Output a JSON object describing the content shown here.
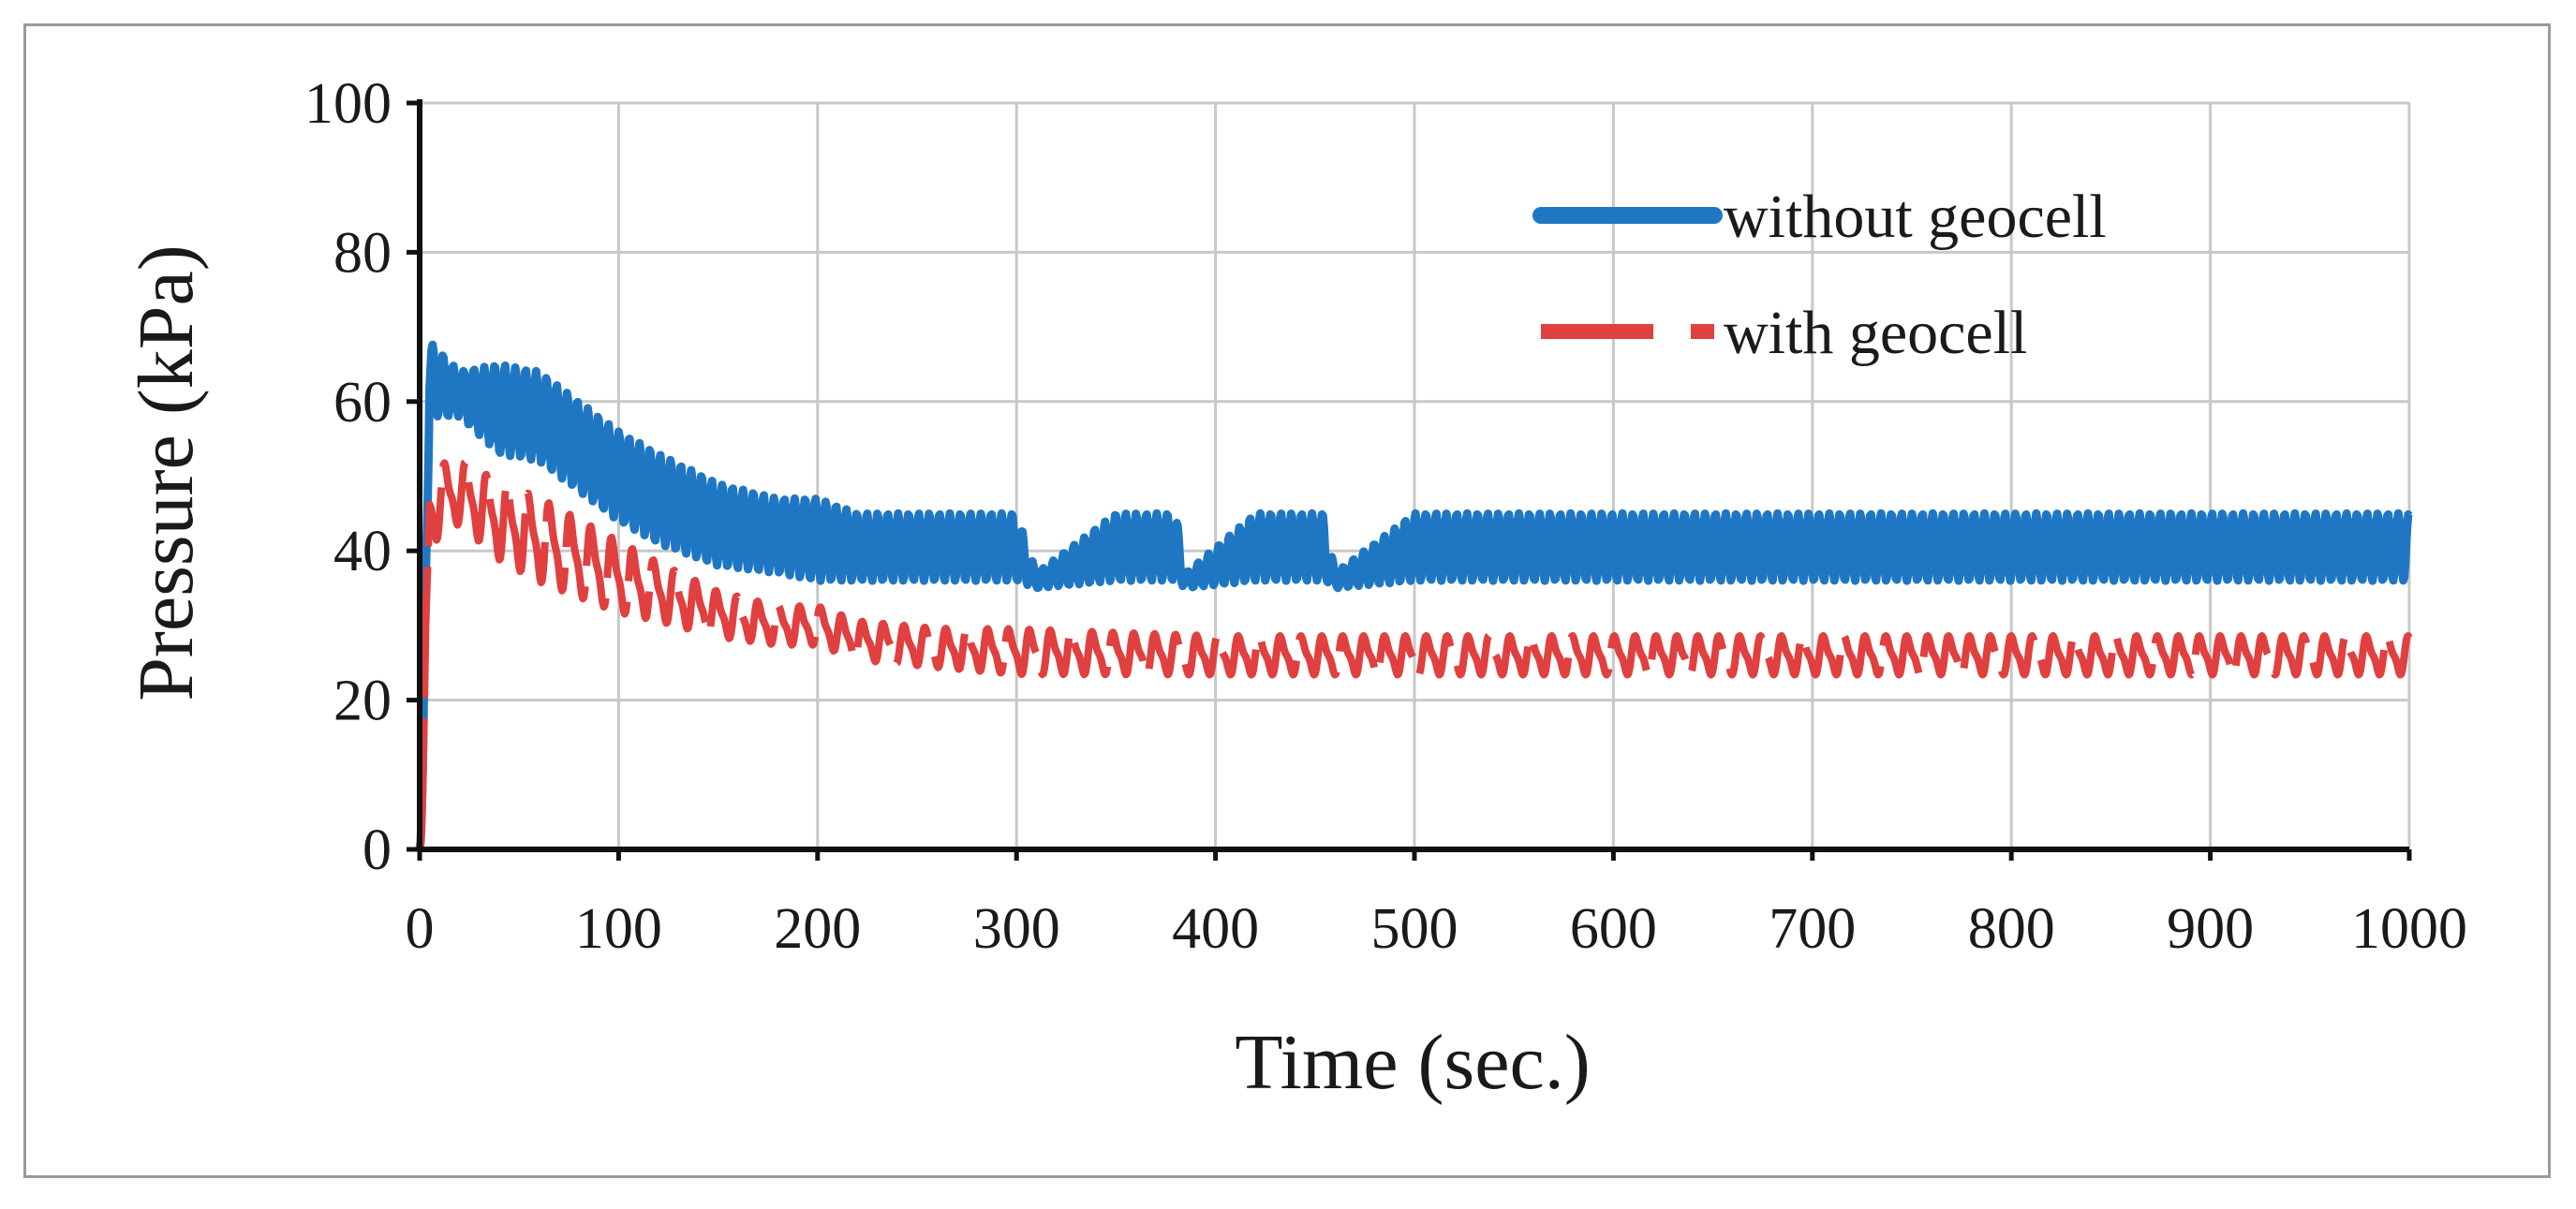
{
  "chart_data": {
    "type": "line",
    "title": "",
    "xlabel": "Time (sec.)",
    "ylabel": "Pressure (kPa)",
    "xlim": [
      0,
      1000
    ],
    "ylim": [
      0,
      100
    ],
    "xticks": [
      0,
      100,
      200,
      300,
      400,
      500,
      600,
      700,
      800,
      900,
      1000
    ],
    "yticks": [
      0,
      20,
      40,
      60,
      80,
      100
    ],
    "grid": true,
    "legend_position": "top-right",
    "series": [
      {
        "name": "without geocell",
        "color": "#1f77c4",
        "line_style": "solid",
        "sampled_envelope": {
          "x": [
            0,
            5,
            20,
            40,
            60,
            80,
            100,
            120,
            150,
            180,
            200,
            220,
            260,
            300,
            310,
            350,
            380,
            385,
            420,
            455,
            460,
            500,
            600,
            700,
            800,
            900,
            1000
          ],
          "upper": [
            0,
            68,
            64,
            65,
            64,
            60,
            56,
            53,
            49,
            47,
            47,
            45,
            45,
            45,
            37,
            45,
            45,
            37,
            45,
            45,
            37,
            45,
            45,
            45,
            45,
            45,
            45
          ],
          "lower": [
            0,
            58,
            58,
            53,
            52,
            48,
            44,
            41,
            38,
            37,
            36,
            36,
            36,
            36,
            35,
            36,
            36,
            35,
            36,
            36,
            35,
            36,
            36,
            36,
            36,
            36,
            36
          ]
        }
      },
      {
        "name": "with geocell",
        "color": "#e04040",
        "line_style": "dashed",
        "sampled_envelope": {
          "x": [
            0,
            5,
            20,
            40,
            60,
            80,
            100,
            120,
            150,
            180,
            200,
            220,
            260,
            300,
            400,
            500,
            600,
            700,
            800,
            900,
            1000
          ],
          "upper": [
            0,
            52,
            53,
            50,
            48,
            45,
            42,
            39,
            35,
            33,
            33,
            31,
            30,
            30,
            29,
            29,
            29,
            29,
            29,
            29,
            29
          ],
          "lower": [
            0,
            40,
            43,
            38,
            35,
            33,
            31,
            30,
            28,
            27,
            27,
            25,
            24,
            23,
            23,
            23,
            23,
            23,
            23,
            23,
            23
          ]
        }
      }
    ]
  }
}
